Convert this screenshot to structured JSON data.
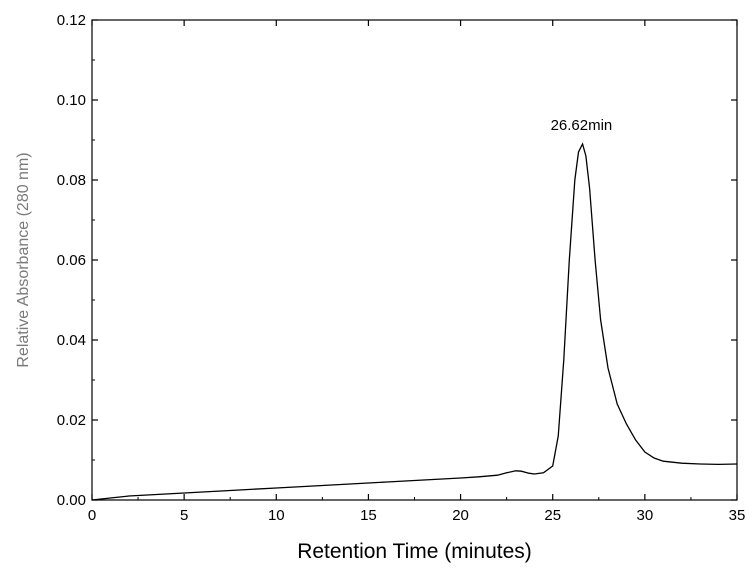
{
  "chart_data": {
    "type": "line",
    "title": "",
    "xlabel": "Retention Time (minutes)",
    "ylabel": "Relative Absorbance (280 nm)",
    "xlim": [
      0,
      35
    ],
    "ylim": [
      0,
      0.12
    ],
    "x_ticks": [
      0,
      5,
      10,
      15,
      20,
      25,
      30,
      35
    ],
    "x_tick_labels": [
      "0",
      "5",
      "10",
      "15",
      "20",
      "25",
      "30",
      "35"
    ],
    "y_ticks": [
      0,
      0.02,
      0.04,
      0.06,
      0.08,
      0.1,
      0.12
    ],
    "y_tick_labels": [
      "0.00",
      "0.02",
      "0.04",
      "0.06",
      "0.08",
      "0.10",
      "0.12"
    ],
    "grid": false,
    "legend": "none",
    "line_color": "#000000",
    "series": [
      {
        "x": [
          0,
          1,
          2,
          4,
          6,
          8,
          10,
          12,
          14,
          16,
          18,
          20,
          21,
          22,
          22.5,
          23,
          23.3,
          23.7,
          24,
          24.5,
          25,
          25.3,
          25.6,
          25.9,
          26.2,
          26.4,
          26.62,
          26.8,
          27.0,
          27.3,
          27.6,
          28.0,
          28.5,
          29.0,
          29.5,
          30.0,
          30.5,
          31.0,
          32.0,
          33.0,
          34.0,
          35.0
        ],
        "y": [
          0.0,
          0.0005,
          0.001,
          0.0015,
          0.002,
          0.0025,
          0.003,
          0.0035,
          0.004,
          0.0045,
          0.005,
          0.0055,
          0.0058,
          0.0062,
          0.0068,
          0.0073,
          0.0072,
          0.0067,
          0.0065,
          0.0068,
          0.0085,
          0.016,
          0.035,
          0.06,
          0.08,
          0.087,
          0.089,
          0.086,
          0.078,
          0.06,
          0.045,
          0.033,
          0.024,
          0.019,
          0.015,
          0.012,
          0.0105,
          0.0097,
          0.0092,
          0.009,
          0.0089,
          0.009
        ]
      }
    ],
    "annotations": [
      {
        "text": "26.62min",
        "x": 26.62,
        "y": 0.089
      }
    ]
  }
}
